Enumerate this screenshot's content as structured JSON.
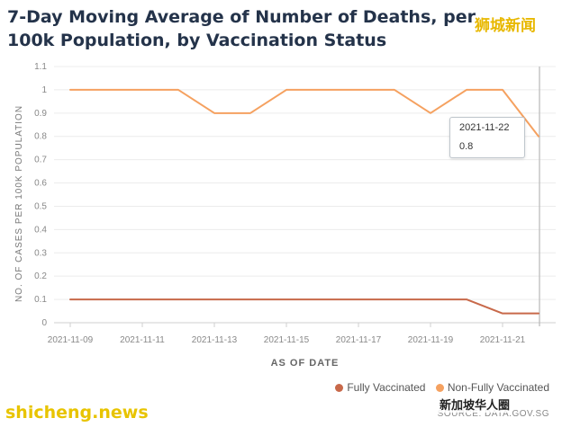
{
  "watermarks": {
    "top_right": "狮城新闻",
    "bottom_left": "shicheng.news",
    "wechat": "新加坡华人圈"
  },
  "source": "SOURCE: DATA.GOV.SG",
  "tooltip": {
    "date": "2021-11-22",
    "value": "0.8"
  },
  "colors": {
    "fully": "#c8694a",
    "non_fully": "#f5a160",
    "grid": "#ececec",
    "crosshair": "#b8b8b8"
  },
  "chart_data": {
    "type": "line",
    "title": "7-Day Moving Average of Number of Deaths, per 100k Population, by Vaccination Status",
    "xlabel": "AS OF DATE",
    "ylabel": "NO. OF CASES PER 100K POPULATION",
    "ylim": [
      0,
      1.1
    ],
    "yticks": [
      "0",
      "0.1",
      "0.2",
      "0.3",
      "0.4",
      "0.5",
      "0.6",
      "0.7",
      "0.8",
      "0.9",
      "1",
      "1.1"
    ],
    "x": [
      "2021-11-09",
      "2021-11-10",
      "2021-11-11",
      "2021-11-12",
      "2021-11-13",
      "2021-11-14",
      "2021-11-15",
      "2021-11-16",
      "2021-11-17",
      "2021-11-18",
      "2021-11-19",
      "2021-11-20",
      "2021-11-21",
      "2021-11-22"
    ],
    "xtick_labels": [
      "2021-11-09",
      "2021-11-11",
      "2021-11-13",
      "2021-11-15",
      "2021-11-17",
      "2021-11-19",
      "2021-11-21"
    ],
    "grid": true,
    "legend_position": "bottom-right",
    "series": [
      {
        "name": "Fully Vaccinated",
        "color": "#c8694a",
        "values": [
          0.1,
          0.1,
          0.1,
          0.1,
          0.1,
          0.1,
          0.1,
          0.1,
          0.1,
          0.1,
          0.1,
          0.1,
          0.04,
          0.04
        ]
      },
      {
        "name": "Non-Fully Vaccinated",
        "color": "#f5a160",
        "values": [
          1,
          1,
          1,
          1,
          0.9,
          0.9,
          1,
          1,
          1,
          1,
          0.9,
          1,
          1,
          0.8
        ]
      }
    ]
  }
}
